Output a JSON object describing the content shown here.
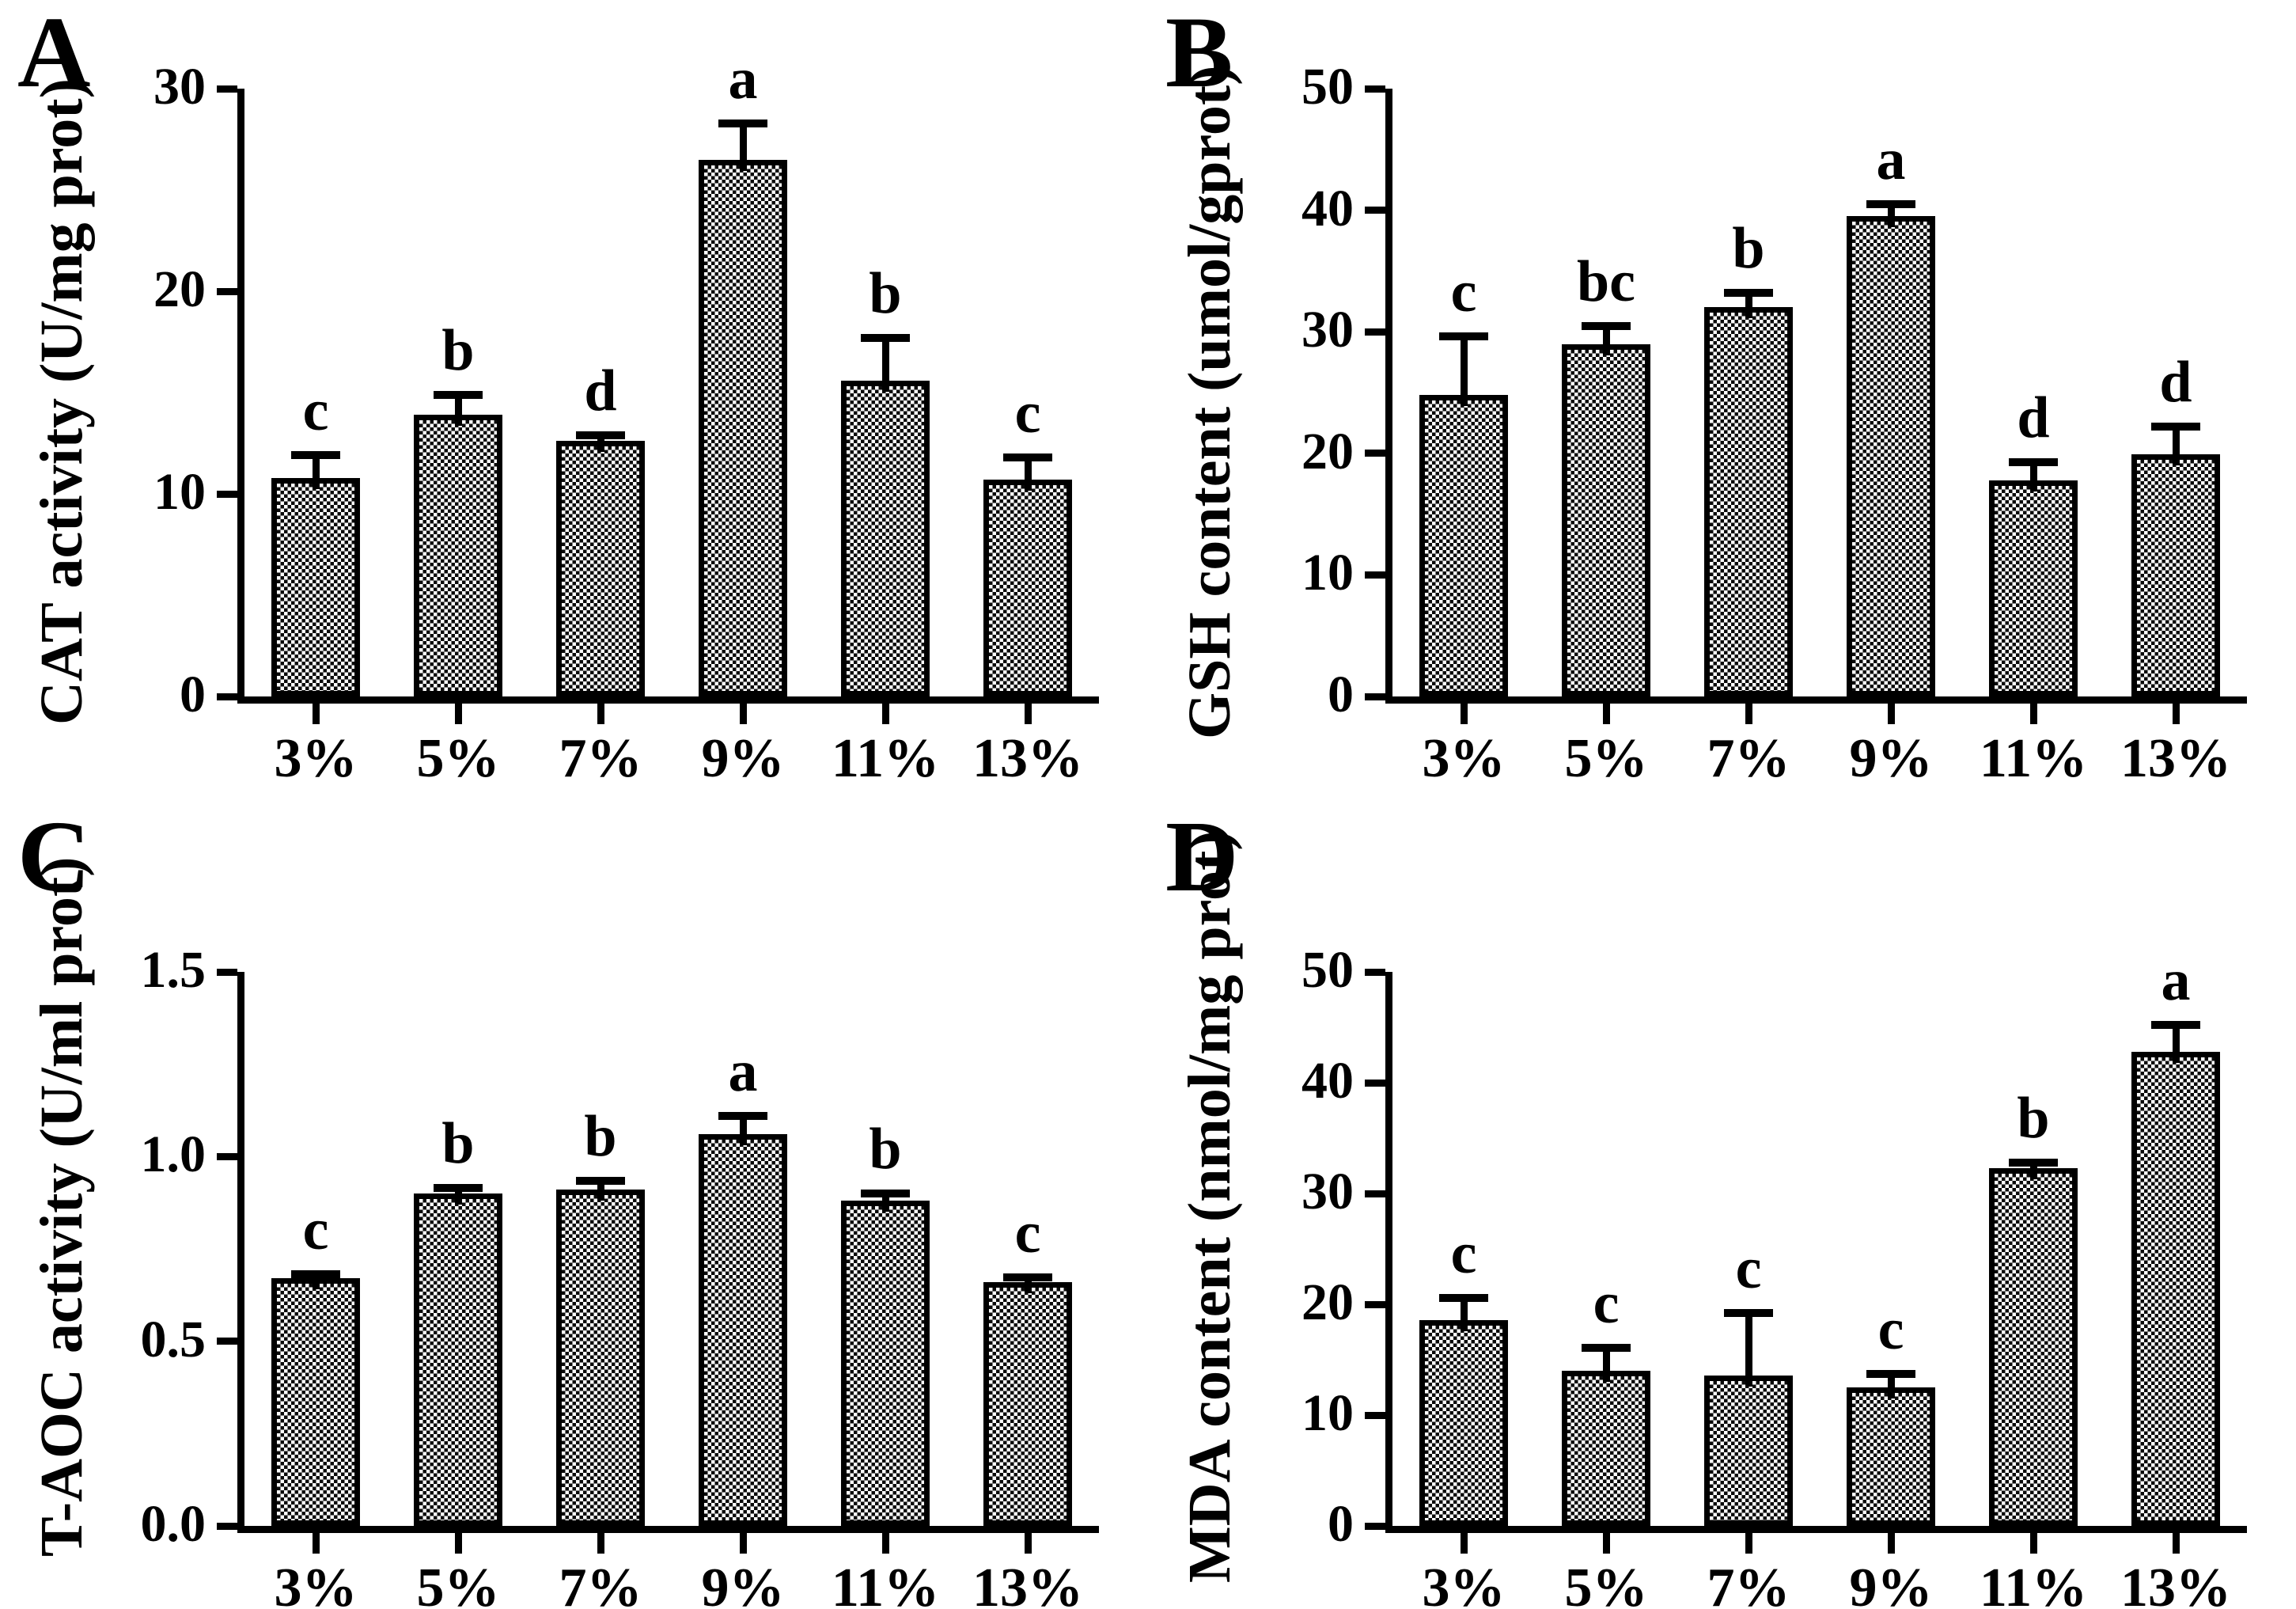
{
  "figure": {
    "panels": [
      "A",
      "B",
      "C",
      "D"
    ]
  },
  "chart_data": [
    {
      "type": "bar",
      "panel": "A",
      "title": "",
      "xlabel": "",
      "ylabel": "CAT activity (U/mg prot)",
      "categories": [
        "3%",
        "5%",
        "7%",
        "9%",
        "11%",
        "13%"
      ],
      "values": [
        10.8,
        13.9,
        12.6,
        26.5,
        15.6,
        10.7
      ],
      "errors": [
        1.1,
        1.0,
        0.3,
        1.8,
        2.1,
        1.1
      ],
      "sig_letters": [
        "c",
        "b",
        "d",
        "a",
        "b",
        "c"
      ],
      "ylim": [
        0,
        30
      ],
      "yticks": [
        "0",
        "10",
        "20",
        "30"
      ],
      "grid": false,
      "legend": "none",
      "bar_fill": "black-white checkerboard hatch",
      "bar_color": "#000000",
      "background": "#ffffff"
    },
    {
      "type": "bar",
      "panel": "B",
      "title": "",
      "xlabel": "",
      "ylabel": "GSH content (umol/gprot)",
      "categories": [
        "3%",
        "5%",
        "7%",
        "9%",
        "11%",
        "13%"
      ],
      "values": [
        24.8,
        29.0,
        32.0,
        39.5,
        17.8,
        19.9
      ],
      "errors": [
        4.8,
        1.5,
        1.2,
        1.0,
        1.5,
        2.3
      ],
      "sig_letters": [
        "c",
        "bc",
        "b",
        "a",
        "d",
        "d"
      ],
      "ylim": [
        0,
        50
      ],
      "yticks": [
        "0",
        "10",
        "20",
        "30",
        "40",
        "50"
      ],
      "grid": false,
      "legend": "none",
      "bar_fill": "black-white checkerboard hatch",
      "bar_color": "#000000",
      "background": "#ffffff"
    },
    {
      "type": "bar",
      "panel": "C",
      "title": "",
      "xlabel": "",
      "ylabel": "T-AOC activity (U/ml prot)",
      "categories": [
        "3%",
        "5%",
        "7%",
        "9%",
        "11%",
        "13%"
      ],
      "values": [
        0.67,
        0.9,
        0.91,
        1.06,
        0.88,
        0.66
      ],
      "errors": [
        0.012,
        0.015,
        0.025,
        0.05,
        0.02,
        0.012
      ],
      "sig_letters": [
        "c",
        "b",
        "b",
        "a",
        "b",
        "c"
      ],
      "ylim": [
        0,
        1.5
      ],
      "yticks": [
        "0.0",
        "0.5",
        "1.0",
        "1.5"
      ],
      "grid": false,
      "legend": "none",
      "bar_fill": "black-white checkerboard hatch",
      "bar_color": "#000000",
      "background": "#ffffff"
    },
    {
      "type": "bar",
      "panel": "D",
      "title": "",
      "xlabel": "",
      "ylabel": "MDA content (nmol/mg prot)",
      "categories": [
        "3%",
        "5%",
        "7%",
        "9%",
        "11%",
        "13%"
      ],
      "values": [
        18.6,
        14.0,
        13.6,
        12.5,
        32.3,
        42.8
      ],
      "errors": [
        2.0,
        2.1,
        5.6,
        1.2,
        0.5,
        2.4
      ],
      "sig_letters": [
        "c",
        "c",
        "c",
        "c",
        "b",
        "a"
      ],
      "ylim": [
        0,
        50
      ],
      "yticks": [
        "0",
        "10",
        "20",
        "30",
        "40",
        "50"
      ],
      "grid": false,
      "legend": "none",
      "bar_fill": "black-white checkerboard hatch",
      "bar_color": "#000000",
      "background": "#ffffff"
    }
  ]
}
